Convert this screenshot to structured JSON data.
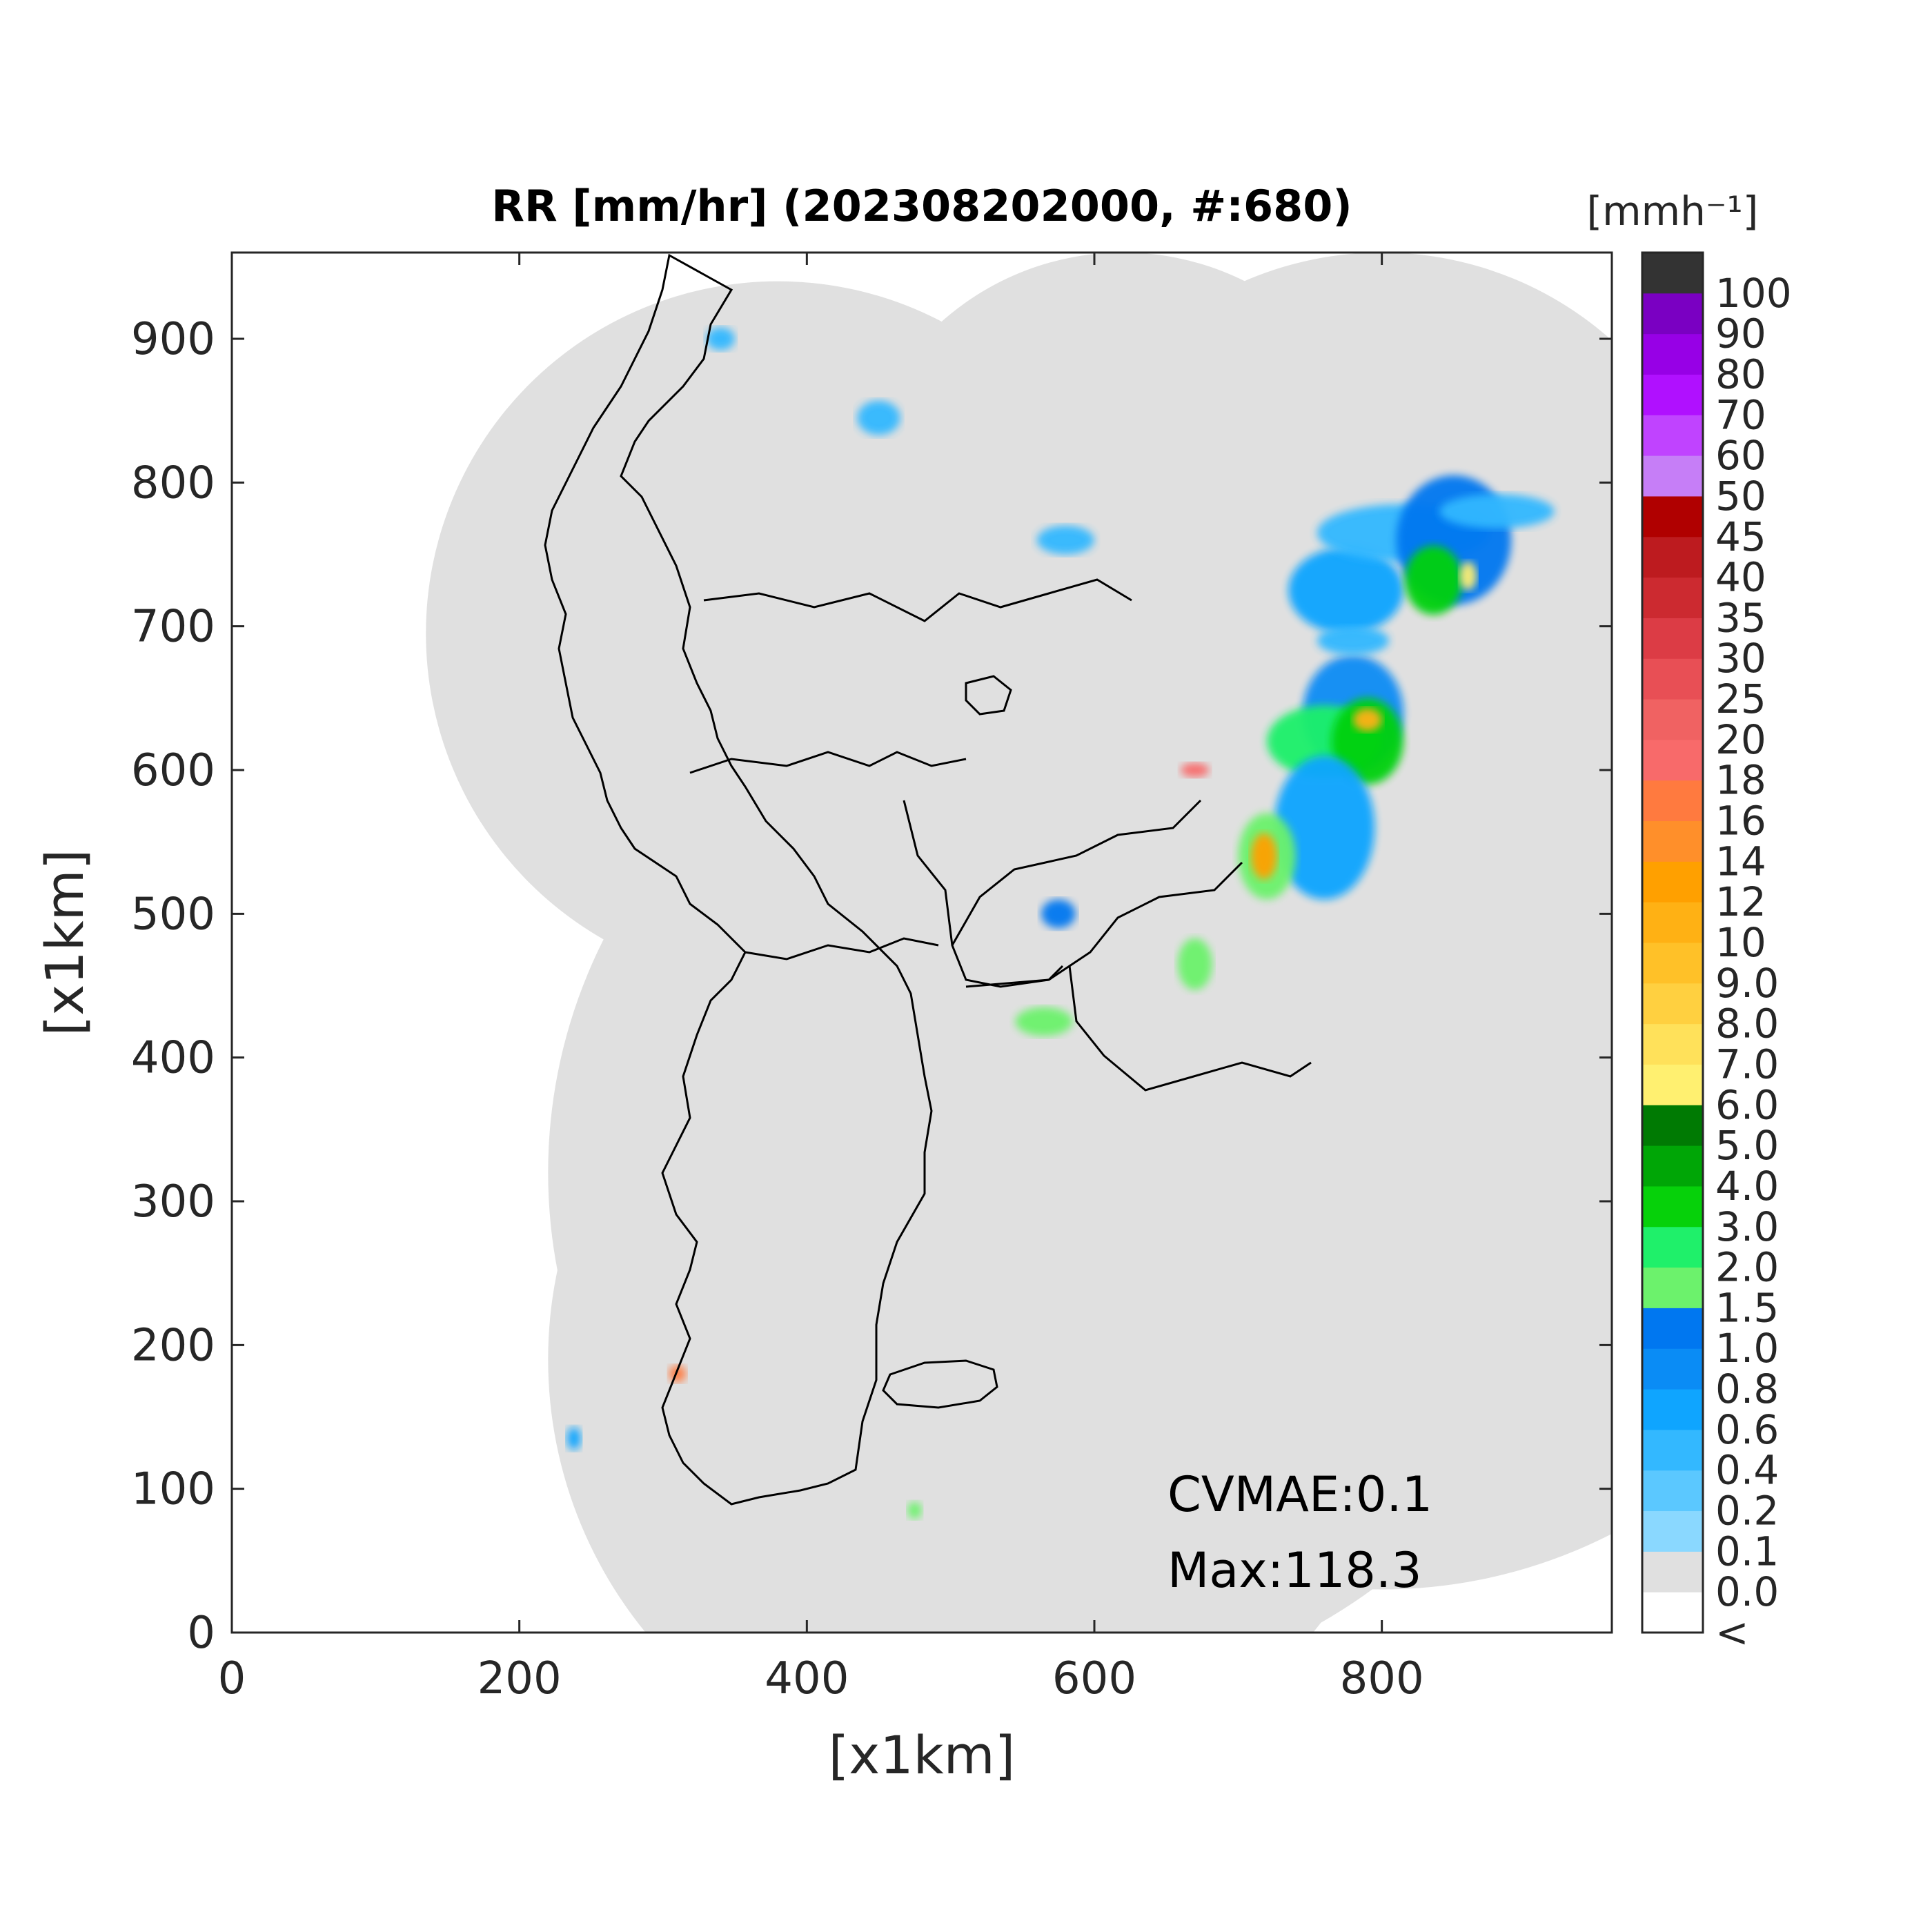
{
  "title": "RR [mm/hr] (202308202000, #:680)",
  "xlabel": "[x1km]",
  "ylabel": "[x1km]",
  "x_ticks": [
    "0",
    "200",
    "400",
    "600",
    "800"
  ],
  "y_ticks": [
    "0",
    "100",
    "200",
    "300",
    "400",
    "500",
    "600",
    "700",
    "800",
    "900"
  ],
  "colorbar": {
    "unit": "[mmh⁻¹]",
    "tick_labels": [
      "<",
      "0.0",
      "0.1",
      "0.2",
      "0.4",
      "0.6",
      "0.8",
      "1.0",
      "1.5",
      "2.0",
      "3.0",
      "4.0",
      "5.0",
      "6.0",
      "7.0",
      "8.0",
      "9.0",
      "10",
      "12",
      "14",
      "16",
      "18",
      "20",
      "25",
      "30",
      "35",
      "40",
      "45",
      "50",
      "60",
      "70",
      "80",
      "90",
      "100"
    ],
    "colors": [
      "#ffffff",
      "#e0e0e0",
      "#8ad8ff",
      "#5bc8ff",
      "#33b8ff",
      "#0fa5ff",
      "#0a8cf5",
      "#0077f0",
      "#6cf26c",
      "#1ff06a",
      "#06d10a",
      "#00a606",
      "#007a03",
      "#fff070",
      "#ffe15a",
      "#ffd040",
      "#ffc128",
      "#ffb114",
      "#ffa000",
      "#ff8f2a",
      "#ff7a3f",
      "#f86a6a",
      "#f06262",
      "#e84f55",
      "#dc3c45",
      "#cc2a30",
      "#bd1b1f",
      "#b00000",
      "#c67ef7",
      "#c043ff",
      "#b010ff",
      "#9700e6",
      "#7a00c2",
      "#333333"
    ]
  },
  "annotations": {
    "cvmae": "CVMAE:0.1",
    "max": "Max:118.3"
  },
  "chart_data": {
    "type": "heatmap",
    "title": "RR [mm/hr] (202308202000, #:680)",
    "xlabel": "[x1km]",
    "ylabel": "[x1km]",
    "xlim": [
      0,
      960
    ],
    "ylim": [
      0,
      960
    ],
    "colorbar_unit": "[mmh⁻¹]",
    "colorbar_levels": [
      0.0,
      0.1,
      0.2,
      0.4,
      0.6,
      0.8,
      1.0,
      1.5,
      2.0,
      3.0,
      4.0,
      5.0,
      6.0,
      7.0,
      8.0,
      9.0,
      10,
      12,
      14,
      16,
      18,
      20,
      25,
      30,
      35,
      40,
      45,
      50,
      60,
      70,
      80,
      90,
      100
    ],
    "cvmae": 0.1,
    "max": 118.3,
    "radar_coverage_circles_km": [
      {
        "cx": 380,
        "cy": 695,
        "r": 245
      },
      {
        "cx": 620,
        "cy": 770,
        "r": 190
      },
      {
        "cx": 580,
        "cy": 320,
        "r": 360
      },
      {
        "cx": 520,
        "cy": 190,
        "r": 300
      },
      {
        "cx": 800,
        "cy": 720,
        "r": 240
      },
      {
        "cx": 830,
        "cy": 560,
        "r": 280
      },
      {
        "cx": 800,
        "cy": 380,
        "r": 350
      }
    ],
    "rain_cells_km": [
      {
        "x": 775,
        "y": 725,
        "rx": 40,
        "ry": 30,
        "level": 0.6
      },
      {
        "x": 815,
        "y": 765,
        "rx": 60,
        "ry": 20,
        "level": 0.4
      },
      {
        "x": 850,
        "y": 760,
        "rx": 40,
        "ry": 45,
        "level": 1.0
      },
      {
        "x": 836,
        "y": 732,
        "rx": 20,
        "ry": 24,
        "level": 3.0
      },
      {
        "x": 860,
        "y": 735,
        "rx": 6,
        "ry": 10,
        "level": 6.0
      },
      {
        "x": 880,
        "y": 780,
        "rx": 40,
        "ry": 12,
        "level": 0.4
      },
      {
        "x": 780,
        "y": 640,
        "rx": 35,
        "ry": 40,
        "level": 0.8
      },
      {
        "x": 760,
        "y": 620,
        "rx": 40,
        "ry": 25,
        "level": 2.0
      },
      {
        "x": 790,
        "y": 620,
        "rx": 25,
        "ry": 30,
        "level": 3.0
      },
      {
        "x": 790,
        "y": 635,
        "rx": 10,
        "ry": 8,
        "level": 10
      },
      {
        "x": 760,
        "y": 560,
        "rx": 35,
        "ry": 50,
        "level": 0.6
      },
      {
        "x": 720,
        "y": 540,
        "rx": 20,
        "ry": 30,
        "level": 1.5
      },
      {
        "x": 718,
        "y": 540,
        "rx": 9,
        "ry": 16,
        "level": 12
      },
      {
        "x": 670,
        "y": 600,
        "rx": 10,
        "ry": 5,
        "level": 18
      },
      {
        "x": 670,
        "y": 465,
        "rx": 12,
        "ry": 18,
        "level": 1.5
      },
      {
        "x": 575,
        "y": 500,
        "rx": 12,
        "ry": 10,
        "level": 1.0
      },
      {
        "x": 565,
        "y": 425,
        "rx": 20,
        "ry": 10,
        "level": 1.5
      },
      {
        "x": 310,
        "y": 180,
        "rx": 6,
        "ry": 6,
        "level": 16
      },
      {
        "x": 238,
        "y": 135,
        "rx": 5,
        "ry": 8,
        "level": 0.6
      },
      {
        "x": 475,
        "y": 85,
        "rx": 5,
        "ry": 6,
        "level": 1.5
      },
      {
        "x": 450,
        "y": 845,
        "rx": 15,
        "ry": 12,
        "level": 0.4
      },
      {
        "x": 340,
        "y": 900,
        "rx": 10,
        "ry": 8,
        "level": 0.4
      },
      {
        "x": 580,
        "y": 760,
        "rx": 20,
        "ry": 10,
        "level": 0.4
      },
      {
        "x": 780,
        "y": 690,
        "rx": 25,
        "ry": 10,
        "level": 0.4
      }
    ]
  }
}
